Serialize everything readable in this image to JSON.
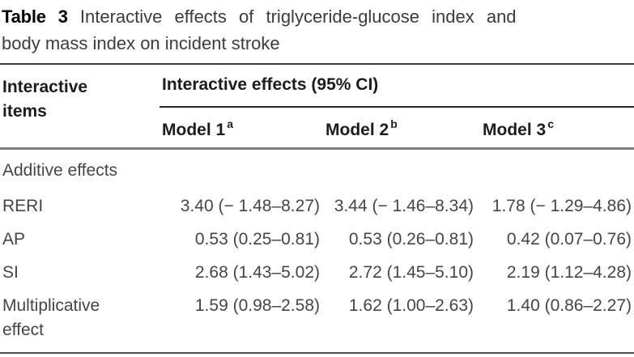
{
  "title": {
    "tag": "Table 3",
    "line1": "Interactive effects of triglyceride-glucose index and",
    "line2": "body mass index on incident stroke"
  },
  "table": {
    "stub_header": "Interactive items",
    "span_header": "Interactive effects (95% CI)",
    "columns": [
      {
        "label": "Model 1",
        "sup": "a"
      },
      {
        "label": "Model 2",
        "sup": "b"
      },
      {
        "label": "Model 3",
        "sup": "c"
      }
    ],
    "section_label": "Additive effects",
    "rows": [
      {
        "label": "RERI",
        "values": [
          "3.40 (− 1.48–8.27)",
          "3.44 (− 1.46–8.34)",
          "1.78 (− 1.29–4.86)"
        ]
      },
      {
        "label": "AP",
        "values": [
          "0.53 (0.25–0.81)",
          "0.53 (0.26–0.81)",
          "0.42 (0.07–0.76)"
        ]
      },
      {
        "label": "SI",
        "values": [
          "2.68 (1.43–5.02)",
          "2.72 (1.45–5.10)",
          "2.19 (1.12–4.28)"
        ]
      },
      {
        "label": "Multiplicative effect",
        "values": [
          "1.59 (0.98–2.58)",
          "1.62 (1.00–2.63)",
          "1.40 (0.86–2.27)"
        ]
      }
    ]
  },
  "colors": {
    "text_body": "#454545",
    "text_bold": "#1c1c1c",
    "rule_dark": "#3e3e3e",
    "rule_gray": "#7e7e7e"
  }
}
